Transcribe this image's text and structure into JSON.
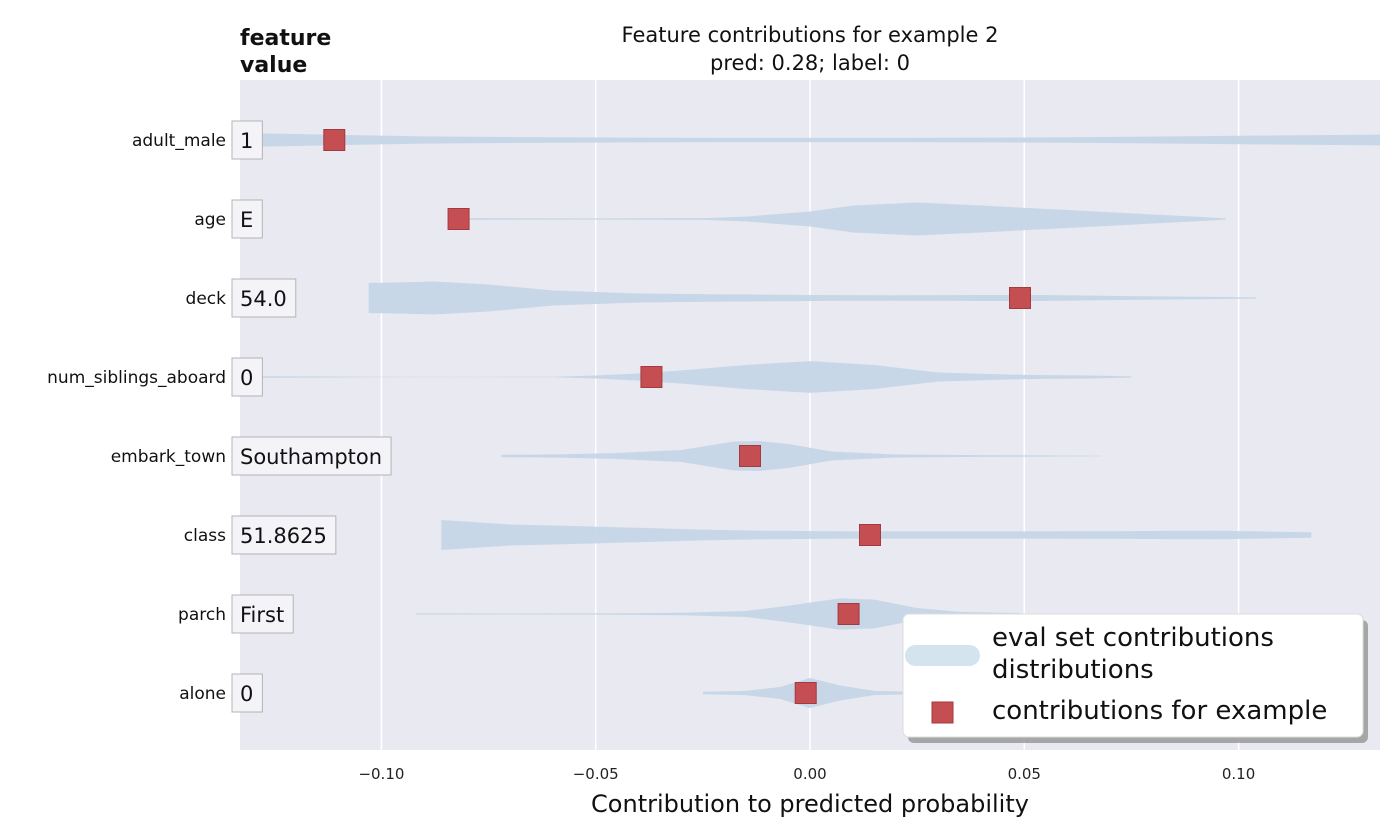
{
  "chart_data": {
    "type": "violin",
    "title": "Feature contributions for example 2",
    "subtitle": "pred: 0.28; label: 0",
    "xlabel": "Contribution to predicted probability",
    "header": [
      "feature",
      "value"
    ],
    "xlim": [
      -0.133,
      0.133
    ],
    "xticks": [
      -0.1,
      -0.05,
      0.0,
      0.05,
      0.1
    ],
    "xtick_labels": [
      "−0.10",
      "−0.05",
      "0.00",
      "0.05",
      "0.10"
    ],
    "grid": true,
    "legend_position": "bottom-right",
    "legend": {
      "distribution_label": [
        "eval set contributions",
        "distributions"
      ],
      "example_label": "contributions for example"
    },
    "colors": {
      "background": "#e9e9f1",
      "violin": "#c6d6e7",
      "marker": "#c44e52",
      "marker_edge": "#a33a3e",
      "grid": "#ffffff"
    },
    "features": [
      {
        "name": "adult_male",
        "value": "1",
        "contribution": -0.111,
        "profile": [
          [
            -0.135,
            0.24
          ],
          [
            -0.12,
            0.2
          ],
          [
            -0.11,
            0.17
          ],
          [
            -0.09,
            0.12
          ],
          [
            -0.06,
            0.09
          ],
          [
            -0.02,
            0.07
          ],
          [
            0.02,
            0.07
          ],
          [
            0.06,
            0.09
          ],
          [
            0.1,
            0.14
          ],
          [
            0.133,
            0.18
          ]
        ]
      },
      {
        "name": "age",
        "value": "E",
        "contribution": -0.082,
        "profile": [
          [
            -0.082,
            0.03
          ],
          [
            -0.05,
            0.02
          ],
          [
            -0.025,
            0.03
          ],
          [
            -0.015,
            0.08
          ],
          [
            0.0,
            0.25
          ],
          [
            0.01,
            0.45
          ],
          [
            0.025,
            0.55
          ],
          [
            0.04,
            0.45
          ],
          [
            0.06,
            0.3
          ],
          [
            0.08,
            0.15
          ],
          [
            0.09,
            0.08
          ],
          [
            0.097,
            0.02
          ]
        ]
      },
      {
        "name": "deck",
        "value": "54.0",
        "contribution": 0.049,
        "profile": [
          [
            -0.103,
            0.5
          ],
          [
            -0.095,
            0.52
          ],
          [
            -0.088,
            0.55
          ],
          [
            -0.075,
            0.45
          ],
          [
            -0.06,
            0.25
          ],
          [
            -0.04,
            0.15
          ],
          [
            -0.02,
            0.12
          ],
          [
            0.0,
            0.1
          ],
          [
            0.02,
            0.09
          ],
          [
            0.04,
            0.1
          ],
          [
            0.055,
            0.1
          ],
          [
            0.07,
            0.07
          ],
          [
            0.085,
            0.05
          ],
          [
            0.104,
            0.02
          ]
        ]
      },
      {
        "name": "num_siblings_aboard",
        "value": "0",
        "contribution": -0.037,
        "profile": [
          [
            -0.132,
            0.03
          ],
          [
            -0.1,
            0.01
          ],
          [
            -0.08,
            0.004
          ],
          [
            -0.06,
            0.01
          ],
          [
            -0.05,
            0.05
          ],
          [
            -0.04,
            0.12
          ],
          [
            -0.03,
            0.22
          ],
          [
            -0.015,
            0.4
          ],
          [
            0.0,
            0.53
          ],
          [
            0.015,
            0.4
          ],
          [
            0.03,
            0.15
          ],
          [
            0.05,
            0.07
          ],
          [
            0.065,
            0.05
          ],
          [
            0.075,
            0.02
          ]
        ]
      },
      {
        "name": "embark_town",
        "value": "Southampton",
        "contribution": -0.014,
        "profile": [
          [
            -0.072,
            0.04
          ],
          [
            -0.06,
            0.05
          ],
          [
            -0.045,
            0.1
          ],
          [
            -0.03,
            0.2
          ],
          [
            -0.018,
            0.48
          ],
          [
            -0.012,
            0.5
          ],
          [
            -0.005,
            0.4
          ],
          [
            0.005,
            0.15
          ],
          [
            0.02,
            0.05
          ],
          [
            0.04,
            0.03
          ],
          [
            0.068,
            0.01
          ]
        ]
      },
      {
        "name": "class",
        "value": "51.8625",
        "contribution": 0.014,
        "profile": [
          [
            -0.086,
            0.5
          ],
          [
            -0.07,
            0.35
          ],
          [
            -0.055,
            0.3
          ],
          [
            -0.04,
            0.24
          ],
          [
            -0.025,
            0.18
          ],
          [
            -0.01,
            0.14
          ],
          [
            0.01,
            0.12
          ],
          [
            0.04,
            0.12
          ],
          [
            0.07,
            0.13
          ],
          [
            0.095,
            0.14
          ],
          [
            0.105,
            0.12
          ],
          [
            0.117,
            0.09
          ]
        ]
      },
      {
        "name": "parch",
        "value": "First",
        "contribution": 0.009,
        "profile": [
          [
            -0.092,
            0.02
          ],
          [
            -0.07,
            0.015
          ],
          [
            -0.05,
            0.02
          ],
          [
            -0.03,
            0.04
          ],
          [
            -0.015,
            0.1
          ],
          [
            -0.005,
            0.28
          ],
          [
            0.007,
            0.52
          ],
          [
            0.015,
            0.48
          ],
          [
            0.025,
            0.2
          ],
          [
            0.035,
            0.07
          ],
          [
            0.049,
            0.03
          ]
        ]
      },
      {
        "name": "alone",
        "value": "0",
        "contribution": -0.001,
        "profile": [
          [
            -0.025,
            0.04
          ],
          [
            -0.015,
            0.07
          ],
          [
            -0.007,
            0.2
          ],
          [
            0.0,
            0.5
          ],
          [
            0.007,
            0.25
          ],
          [
            0.015,
            0.07
          ],
          [
            0.025,
            0.04
          ]
        ]
      }
    ]
  }
}
